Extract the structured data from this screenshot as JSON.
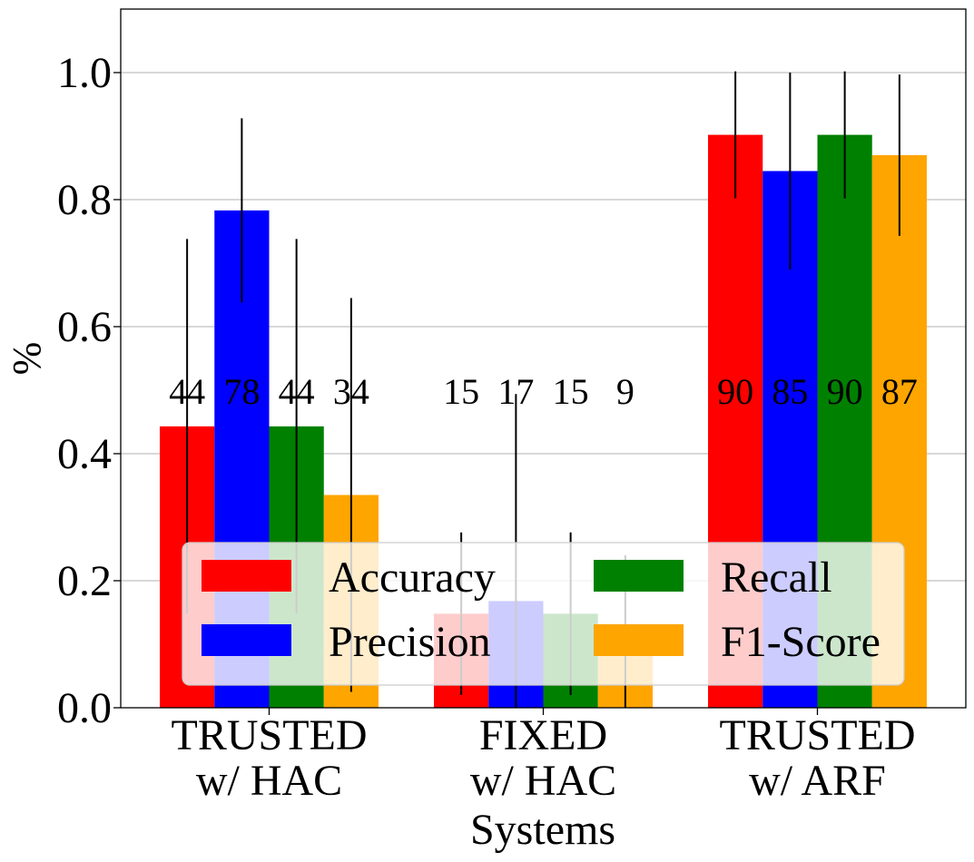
{
  "chart_data": {
    "type": "bar",
    "title": "",
    "xlabel": "Systems",
    "ylabel": "%",
    "ylim": [
      0,
      1.1
    ],
    "yticks": [
      "0.0",
      "0.2",
      "0.4",
      "0.6",
      "0.8",
      "1.0"
    ],
    "grid": "y",
    "legend_position": "lower-center",
    "categories": [
      [
        "TRUSTED",
        "w/ HAC"
      ],
      [
        "FIXED",
        "w/ HAC"
      ],
      [
        "TRUSTED",
        "w/ ARF"
      ]
    ],
    "series": [
      {
        "name": "Accuracy",
        "color": "#ff0000",
        "values": [
          0.443,
          0.148,
          0.902
        ],
        "errors": [
          0.295,
          0.128,
          0.1
        ],
        "labels": [
          "44",
          "15",
          "90"
        ]
      },
      {
        "name": "Precision",
        "color": "#0000ff",
        "values": [
          0.783,
          0.168,
          0.845
        ],
        "errors": [
          0.145,
          0.326,
          0.155
        ],
        "labels": [
          "78",
          "17",
          "85"
        ]
      },
      {
        "name": "Recall",
        "color": "#008000",
        "values": [
          0.443,
          0.148,
          0.902
        ],
        "errors": [
          0.295,
          0.128,
          0.1
        ],
        "labels": [
          "44",
          "15",
          "90"
        ]
      },
      {
        "name": "F1-Score",
        "color": "#ffa500",
        "values": [
          0.335,
          0.09,
          0.87
        ],
        "errors": [
          0.31,
          0.15,
          0.127
        ],
        "labels": [
          "34",
          "9",
          "87"
        ]
      }
    ]
  }
}
